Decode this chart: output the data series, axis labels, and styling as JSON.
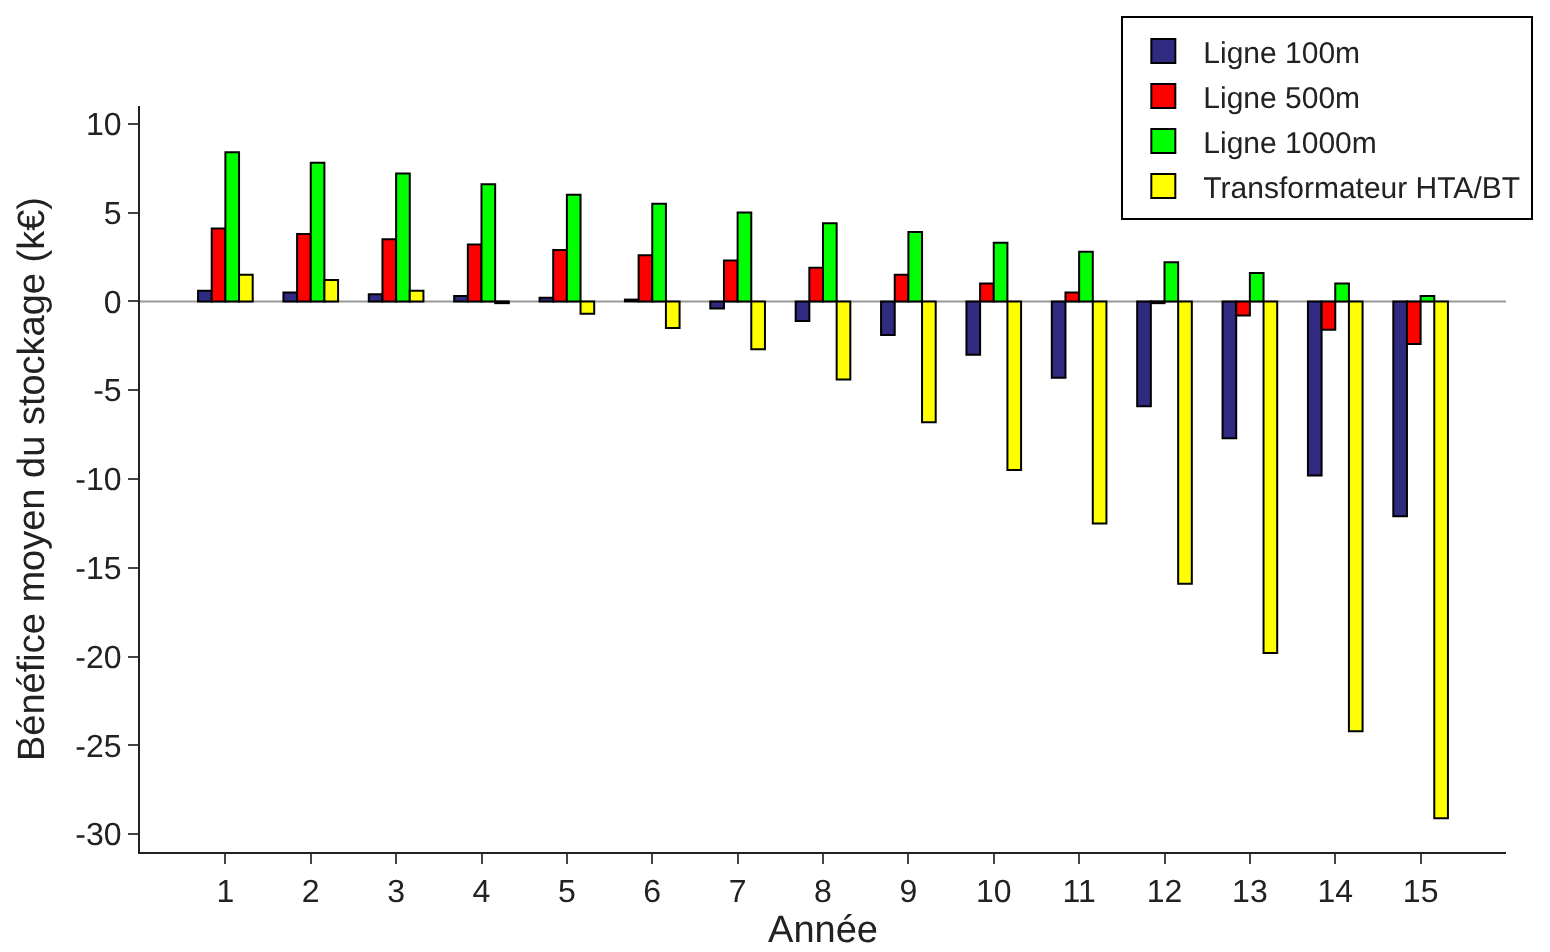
{
  "chart_data": {
    "type": "bar",
    "xlabel": "Année",
    "ylabel": "Bénéfice moyen du stockage (k€)",
    "x": [
      1,
      2,
      3,
      4,
      5,
      6,
      7,
      8,
      9,
      10,
      11,
      12,
      13,
      14,
      15
    ],
    "series": [
      {
        "name": "Ligne 100m",
        "color": "#302a80",
        "values": [
          0.6,
          0.5,
          0.4,
          0.3,
          0.2,
          0.1,
          -0.4,
          -1.1,
          -1.9,
          -3.0,
          -4.3,
          -5.9,
          -7.7,
          -9.8,
          -12.1
        ]
      },
      {
        "name": "Ligne 500m",
        "color": "#ff0000",
        "values": [
          4.1,
          3.8,
          3.5,
          3.2,
          2.9,
          2.6,
          2.3,
          1.9,
          1.5,
          1.0,
          0.5,
          -0.1,
          -0.8,
          -1.6,
          -2.4
        ]
      },
      {
        "name": "Ligne 1000m",
        "color": "#00ff00",
        "values": [
          8.4,
          7.8,
          7.2,
          6.6,
          6.0,
          5.5,
          5.0,
          4.4,
          3.9,
          3.3,
          2.8,
          2.2,
          1.6,
          1.0,
          0.3
        ]
      },
      {
        "name": "Transformateur HTA/BT",
        "color": "#ffff00",
        "values": [
          1.5,
          1.2,
          0.6,
          -0.1,
          -0.7,
          -1.5,
          -2.7,
          -4.4,
          -6.8,
          -9.5,
          -12.5,
          -15.9,
          -19.8,
          -24.2,
          -29.1
        ]
      }
    ],
    "xlim": [
      0,
      16
    ],
    "xticks": [
      1,
      2,
      3,
      4,
      5,
      6,
      7,
      8,
      9,
      10,
      11,
      12,
      13,
      14,
      15
    ],
    "ylim": [
      -31,
      11
    ],
    "yticks": [
      -30,
      -25,
      -20,
      -15,
      -10,
      -5,
      0,
      5,
      10
    ],
    "ref_lines": [
      {
        "axis": "y",
        "value": 0,
        "color": "#999999"
      }
    ],
    "legend": "top right"
  }
}
